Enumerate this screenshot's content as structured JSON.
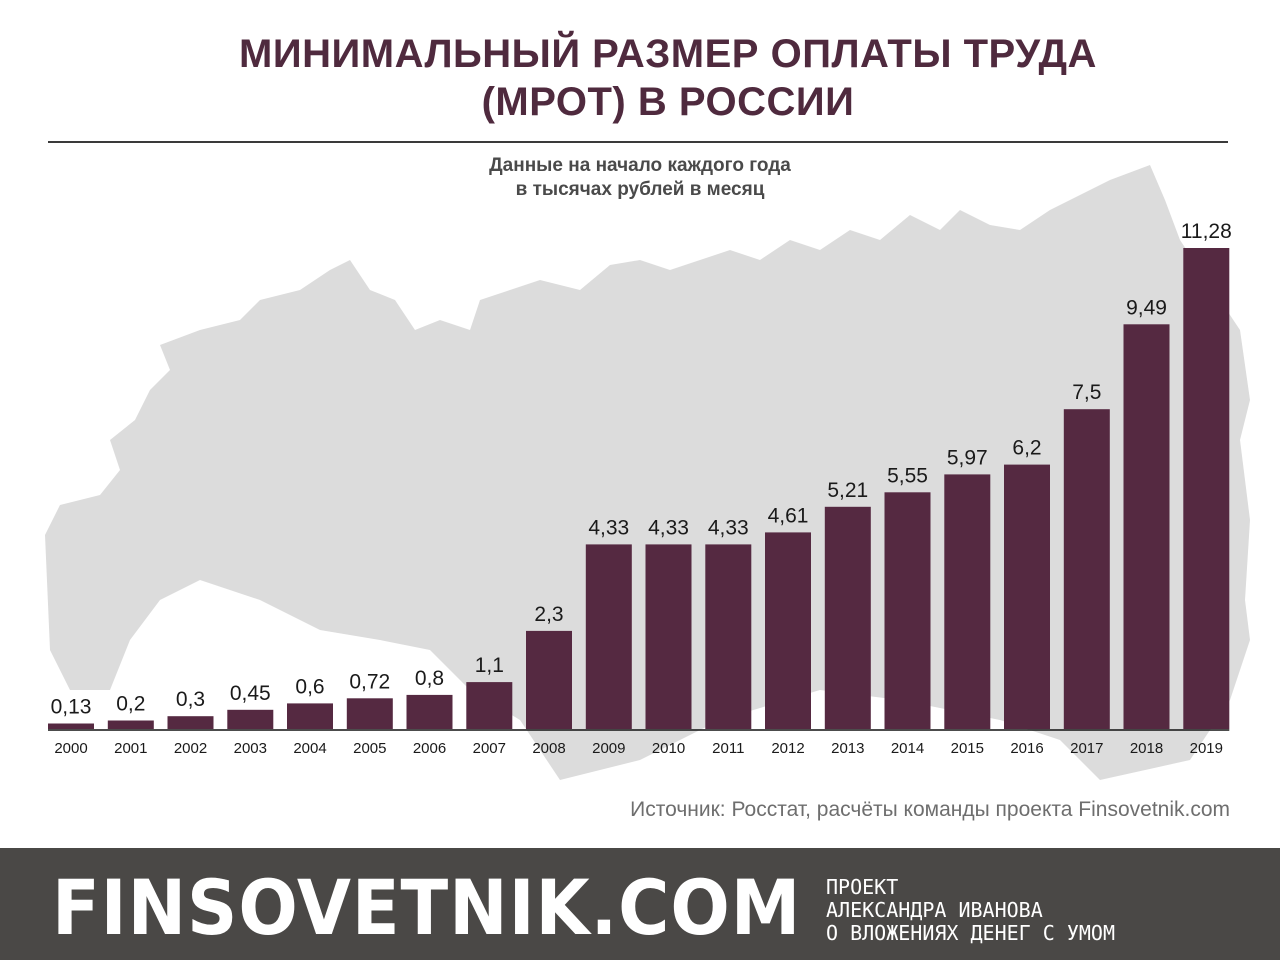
{
  "title": {
    "line1": "МИНИМАЛЬНЫЙ РАЗМЕР ОПЛАТЫ ТРУДА",
    "line2": "(МРОТ) В РОССИИ"
  },
  "subtitle": {
    "line1": "Данные на начало каждого года",
    "line2": "в тысячах рублей в месяц"
  },
  "chart_data": {
    "type": "bar",
    "categories": [
      "2000",
      "2001",
      "2002",
      "2003",
      "2004",
      "2005",
      "2006",
      "2007",
      "2008",
      "2009",
      "2010",
      "2011",
      "2012",
      "2013",
      "2014",
      "2015",
      "2016",
      "2017",
      "2018",
      "2019"
    ],
    "values": [
      0.13,
      0.2,
      0.3,
      0.45,
      0.6,
      0.72,
      0.8,
      1.1,
      2.3,
      4.33,
      4.33,
      4.33,
      4.61,
      5.21,
      5.55,
      5.97,
      6.2,
      7.5,
      9.49,
      11.28
    ],
    "value_labels": [
      "0,13",
      "0,2",
      "0,3",
      "0,45",
      "0,6",
      "0,72",
      "0,8",
      "1,1",
      "2,3",
      "4,33",
      "4,33",
      "4,33",
      "4,61",
      "5,21",
      "5,55",
      "5,97",
      "6,2",
      "7,5",
      "9,49",
      "11,28"
    ],
    "bar_color": "#552941",
    "ylim": [
      0,
      11.28
    ],
    "grid": false,
    "legend": "none"
  },
  "source": "Источник: Росстат, расчёты команды проекта Finsovetnik.com",
  "footer": {
    "brand": "FINSOVETNIK.COM",
    "tagline": [
      "ПРОЕКТ",
      "АЛЕКСАНДРА ИВАНОВА",
      "О ВЛОЖЕНИЯХ ДЕНЕГ С УМОМ"
    ]
  },
  "colors": {
    "title": "#4f2a3e",
    "bar": "#552941",
    "map": "#dcdcdc",
    "footer": "#4a4846"
  }
}
